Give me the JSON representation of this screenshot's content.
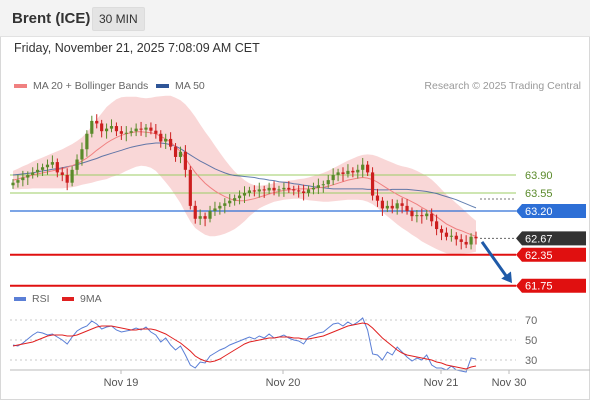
{
  "header": {
    "instrument": "Brent (ICE)",
    "interval": "30 MIN"
  },
  "datetime": "Friday, November 21, 2025 7:08:09 AM CET",
  "legend": [
    {
      "label": "MA 20 + Bollinger Bands",
      "color": "#f08080"
    },
    {
      "label": "MA 50",
      "color": "#2f5597"
    }
  ],
  "credit": "Research © 2025 Trading Central",
  "rsi_legend": [
    {
      "label": "RSI",
      "color": "#5b7fd6"
    },
    {
      "label": "9MA",
      "color": "#e02020"
    }
  ],
  "colors": {
    "up": "#5a8a2a",
    "down": "#cc1f1f",
    "resistance": "#9ccc65",
    "pivot": "#2d6fd6",
    "support": "#e01010",
    "last": "#333333",
    "band": "#f7c9c9",
    "arrow": "#1f5aa8"
  },
  "chart_data": {
    "type": "candlestick",
    "x_ticks": [
      "Nov 19",
      "Nov 20",
      "Nov 21",
      "Nov 30"
    ],
    "price_levels": [
      {
        "value": 63.9,
        "label": "63.90",
        "kind": "resistance"
      },
      {
        "value": 63.55,
        "label": "63.55",
        "kind": "resistance"
      },
      {
        "value": 63.2,
        "label": "63.20",
        "kind": "pivot"
      },
      {
        "value": 62.67,
        "label": "62.67",
        "kind": "last"
      },
      {
        "value": 62.35,
        "label": "62.35",
        "kind": "support"
      },
      {
        "value": 61.75,
        "label": "61.75",
        "kind": "support"
      }
    ],
    "close": [
      63.75,
      63.8,
      63.85,
      63.9,
      63.95,
      64.0,
      64.05,
      64.1,
      64.15,
      63.95,
      63.9,
      63.75,
      64.0,
      64.2,
      64.4,
      64.7,
      64.95,
      64.9,
      64.75,
      64.8,
      64.85,
      64.75,
      64.7,
      64.72,
      64.75,
      64.8,
      64.78,
      64.82,
      64.76,
      64.7,
      64.55,
      64.6,
      64.45,
      64.25,
      64.35,
      64.0,
      63.3,
      63.05,
      63.1,
      63.05,
      63.2,
      63.25,
      63.3,
      63.35,
      63.4,
      63.45,
      63.5,
      63.55,
      63.6,
      63.58,
      63.62,
      63.6,
      63.65,
      63.6,
      63.62,
      63.65,
      63.62,
      63.6,
      63.58,
      63.55,
      63.62,
      63.65,
      63.7,
      63.72,
      63.8,
      63.9,
      63.95,
      63.92,
      63.98,
      63.95,
      64.0,
      64.1,
      63.95,
      63.5,
      63.4,
      63.25,
      63.3,
      63.25,
      63.35,
      63.3,
      63.2,
      63.1,
      63.12,
      63.1,
      63.15,
      63.0,
      62.85,
      62.78,
      62.7,
      62.72,
      62.65,
      62.6,
      62.55,
      62.7,
      62.67
    ],
    "ma20": [
      63.8,
      63.82,
      63.85,
      63.87,
      63.9,
      63.92,
      63.94,
      63.96,
      63.98,
      64.0,
      64.02,
      64.05,
      64.08,
      64.12,
      64.17,
      64.23,
      64.3,
      64.38,
      64.45,
      64.52,
      64.58,
      64.63,
      64.67,
      64.7,
      64.72,
      64.74,
      64.74,
      64.73,
      64.72,
      64.7,
      64.65,
      64.6,
      64.54,
      64.45,
      64.35,
      64.22,
      64.08,
      63.95,
      63.84,
      63.74,
      63.66,
      63.59,
      63.53,
      63.48,
      63.44,
      63.41,
      63.4,
      63.4,
      63.42,
      63.44,
      63.47,
      63.5,
      63.53,
      63.56,
      63.58,
      63.6,
      63.61,
      63.62,
      63.63,
      63.63,
      63.63,
      63.64,
      63.65,
      63.66,
      63.68,
      63.71,
      63.74,
      63.77,
      63.8,
      63.82,
      63.84,
      63.85,
      63.84,
      63.81,
      63.76,
      63.7,
      63.64,
      63.58,
      63.52,
      63.47,
      63.43,
      63.38,
      63.33,
      63.27,
      63.22,
      63.16,
      63.09,
      63.02,
      62.95,
      62.9,
      62.85,
      62.82,
      62.78,
      62.74,
      62.71
    ],
    "ma50": [
      63.9,
      63.91,
      63.92,
      63.93,
      63.94,
      63.96,
      63.98,
      63.99,
      64.01,
      64.02,
      64.04,
      64.06,
      64.08,
      64.1,
      64.13,
      64.16,
      64.19,
      64.22,
      64.26,
      64.29,
      64.32,
      64.35,
      64.38,
      64.41,
      64.44,
      64.46,
      64.48,
      64.5,
      64.51,
      64.52,
      64.52,
      64.51,
      64.49,
      64.46,
      64.41,
      64.35,
      64.29,
      64.23,
      64.17,
      64.12,
      64.07,
      64.02,
      63.98,
      63.94,
      63.91,
      63.89,
      63.88,
      63.87,
      63.86,
      63.85,
      63.83,
      63.82,
      63.8,
      63.79,
      63.77,
      63.76,
      63.75,
      63.73,
      63.72,
      63.7,
      63.69,
      63.67,
      63.66,
      63.65,
      63.64,
      63.63,
      63.63,
      63.63,
      63.63,
      63.63,
      63.63,
      63.63,
      63.62,
      63.62,
      63.61,
      63.61,
      63.61,
      63.62,
      63.62,
      63.62,
      63.62,
      63.61,
      63.6,
      63.59,
      63.58,
      63.56,
      63.54,
      63.51,
      63.48,
      63.45,
      63.42,
      63.38,
      63.34,
      63.3,
      63.26
    ],
    "bb_width": [
      0.18,
      0.2,
      0.22,
      0.24,
      0.26,
      0.28,
      0.3,
      0.32,
      0.34,
      0.36,
      0.38,
      0.4,
      0.42,
      0.44,
      0.46,
      0.5,
      0.55,
      0.6,
      0.65,
      0.7,
      0.72,
      0.74,
      0.74,
      0.72,
      0.7,
      0.68,
      0.66,
      0.66,
      0.68,
      0.72,
      0.78,
      0.84,
      0.9,
      0.95,
      1.0,
      1.05,
      1.08,
      1.08,
      1.04,
      1.0,
      0.95,
      0.88,
      0.8,
      0.72,
      0.64,
      0.56,
      0.48,
      0.4,
      0.32,
      0.26,
      0.22,
      0.2,
      0.19,
      0.18,
      0.18,
      0.18,
      0.18,
      0.18,
      0.19,
      0.2,
      0.22,
      0.24,
      0.26,
      0.28,
      0.3,
      0.32,
      0.34,
      0.36,
      0.38,
      0.4,
      0.42,
      0.44,
      0.46,
      0.48,
      0.5,
      0.52,
      0.54,
      0.56,
      0.58,
      0.6,
      0.62,
      0.64,
      0.65,
      0.66,
      0.66,
      0.65,
      0.63,
      0.6,
      0.57,
      0.54,
      0.5,
      0.45,
      0.4,
      0.35,
      0.3
    ],
    "rsi": [
      45,
      44,
      47,
      51,
      55,
      58,
      57,
      55,
      56,
      53,
      50,
      46,
      53,
      59,
      62,
      64,
      69,
      66,
      61,
      63,
      64,
      60,
      58,
      59,
      60,
      62,
      60,
      63,
      58,
      55,
      48,
      52,
      45,
      40,
      44,
      35,
      25,
      22,
      28,
      27,
      34,
      37,
      40,
      42,
      45,
      47,
      49,
      51,
      53,
      51,
      54,
      52,
      56,
      52,
      53,
      55,
      52,
      50,
      49,
      46,
      53,
      55,
      57,
      58,
      62,
      66,
      67,
      64,
      68,
      65,
      68,
      72,
      60,
      36,
      35,
      30,
      38,
      35,
      43,
      38,
      33,
      29,
      32,
      30,
      35,
      25,
      22,
      22,
      20,
      24,
      20,
      19,
      18,
      32,
      31
    ],
    "rsi_ma9": [
      44,
      45,
      46,
      47,
      48,
      50,
      52,
      54,
      55,
      55,
      55,
      54,
      54,
      55,
      57,
      59,
      61,
      63,
      64,
      64,
      64,
      63,
      62,
      61,
      60,
      60,
      61,
      61,
      61,
      60,
      58,
      56,
      53,
      50,
      47,
      43,
      39,
      34,
      31,
      29,
      28,
      29,
      31,
      34,
      37,
      40,
      43,
      46,
      48,
      49,
      50,
      51,
      52,
      52,
      53,
      53,
      53,
      52,
      52,
      51,
      51,
      52,
      53,
      54,
      56,
      58,
      60,
      62,
      64,
      65,
      66,
      67,
      66,
      62,
      57,
      52,
      48,
      44,
      40,
      37,
      35,
      34,
      33,
      32,
      31,
      30,
      28,
      27,
      25,
      24,
      23,
      22,
      21,
      23,
      24
    ],
    "rsi_levels": [
      70,
      50,
      30
    ],
    "ylim": [
      61.55,
      65.55
    ],
    "rsi_lim": [
      20,
      80
    ]
  }
}
